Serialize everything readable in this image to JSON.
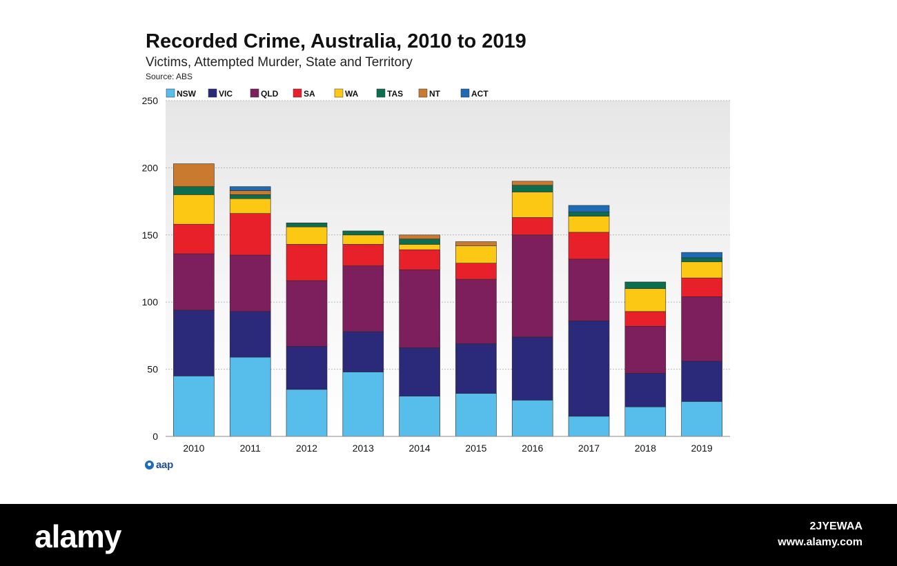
{
  "header": {
    "title": "Recorded Crime, Australia, 2010 to 2019",
    "subtitle": "Victims, Attempted Murder, State and Territory",
    "source": "Source: ABS"
  },
  "logo": {
    "text": "aap",
    "icon": "aap-logo-icon",
    "color": "#1e6bbf"
  },
  "footer": {
    "brand": "alamy",
    "image_id": "2JYEWAA",
    "url": "www.alamy.com"
  },
  "chart_data": {
    "type": "bar",
    "stacked": true,
    "categories": [
      "2010",
      "2011",
      "2012",
      "2013",
      "2014",
      "2015",
      "2016",
      "2017",
      "2018",
      "2019"
    ],
    "ylim": [
      0,
      250
    ],
    "yticks": [
      0,
      50,
      100,
      150,
      200,
      250
    ],
    "grid": true,
    "legend_position": "top-left",
    "series": [
      {
        "name": "NSW",
        "color": "#57bdeb",
        "values": [
          45,
          59,
          35,
          48,
          30,
          32,
          27,
          15,
          22,
          26
        ]
      },
      {
        "name": "VIC",
        "color": "#2b2a7a",
        "values": [
          49,
          34,
          32,
          30,
          36,
          37,
          47,
          71,
          25,
          30
        ]
      },
      {
        "name": "QLD",
        "color": "#7d1f5c",
        "values": [
          42,
          42,
          49,
          49,
          58,
          48,
          76,
          46,
          35,
          48
        ]
      },
      {
        "name": "SA",
        "color": "#e8202a",
        "values": [
          22,
          31,
          27,
          16,
          15,
          12,
          13,
          20,
          11,
          14
        ]
      },
      {
        "name": "WA",
        "color": "#fdc813",
        "values": [
          22,
          11,
          13,
          7,
          4,
          13,
          19,
          12,
          17,
          12
        ]
      },
      {
        "name": "TAS",
        "color": "#0d6e4f",
        "values": [
          6,
          3,
          3,
          3,
          4,
          0,
          5,
          3,
          5,
          3
        ]
      },
      {
        "name": "NT",
        "color": "#c97a2e",
        "values": [
          17,
          3,
          0,
          0,
          3,
          3,
          3,
          0,
          0,
          0
        ]
      },
      {
        "name": "ACT",
        "color": "#1f6bb3",
        "values": [
          0,
          3,
          0,
          0,
          0,
          0,
          0,
          5,
          0,
          4
        ]
      }
    ]
  }
}
